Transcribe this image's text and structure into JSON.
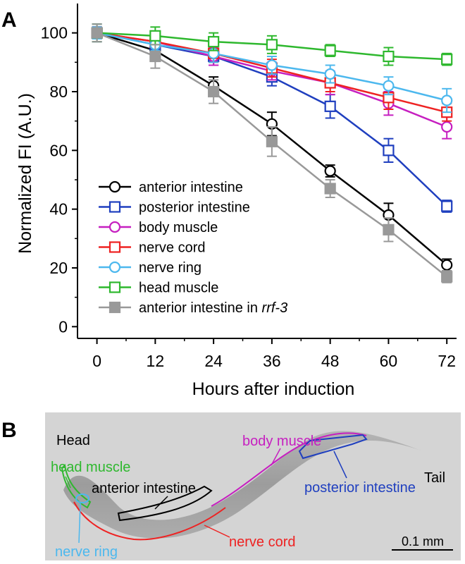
{
  "panel_a_label": "A",
  "panel_b_label": "B",
  "chart_data": {
    "type": "line",
    "xlabel": "Hours after induction",
    "ylabel": "Normalized FI (A.U.)",
    "x": [
      0,
      12,
      24,
      36,
      48,
      60,
      72
    ],
    "xticks": [
      "0",
      "12",
      "24",
      "36",
      "48",
      "60",
      "72"
    ],
    "yticks": [
      "0",
      "20",
      "40",
      "60",
      "80",
      "100"
    ],
    "xlim": [
      -4,
      74
    ],
    "ylim": [
      -4,
      110
    ],
    "grid": false,
    "legend_position": "lower-left",
    "series": [
      {
        "name": "anterior intestine",
        "color": "#000000",
        "marker": "open-circle",
        "values": [
          100,
          94,
          82,
          69,
          53,
          38,
          21
        ],
        "errors": [
          2,
          3,
          3,
          4,
          2,
          4,
          2
        ]
      },
      {
        "name": "posterior intestine",
        "color": "#1f3fbf",
        "marker": "open-square",
        "values": [
          100,
          96,
          92,
          85,
          75,
          60,
          41
        ],
        "errors": [
          3,
          3,
          3,
          3,
          4,
          4,
          2
        ]
      },
      {
        "name": "body muscle",
        "color": "#c61fc0",
        "marker": "open-circle",
        "values": [
          100,
          97,
          92,
          87,
          83,
          76,
          68
        ],
        "errors": [
          2,
          2,
          3,
          3,
          4,
          4,
          4
        ]
      },
      {
        "name": "nerve cord",
        "color": "#ee2222",
        "marker": "open-square",
        "values": [
          100,
          97,
          93,
          88,
          83,
          78,
          73
        ],
        "errors": [
          2,
          2,
          3,
          3,
          3,
          4,
          3
        ]
      },
      {
        "name": "nerve ring",
        "color": "#4cb8ee",
        "marker": "open-circle",
        "values": [
          100,
          96,
          93,
          89,
          86,
          82,
          77
        ],
        "errors": [
          2,
          2,
          3,
          3,
          3,
          3,
          4
        ]
      },
      {
        "name": "head muscle",
        "color": "#2eb82e",
        "marker": "open-square",
        "values": [
          100,
          99,
          97,
          96,
          94,
          92,
          91
        ],
        "errors": [
          3,
          3,
          3,
          3,
          2,
          3,
          2
        ]
      },
      {
        "name": "anterior intestine in ",
        "name_italic": "rrf-3",
        "color": "#999999",
        "marker": "filled-square",
        "values": [
          100,
          92,
          80,
          63,
          47,
          33,
          17
        ],
        "errors": [
          3,
          4,
          4,
          5,
          3,
          4,
          2
        ]
      }
    ]
  },
  "image_b": {
    "labels": {
      "head": "Head",
      "tail": "Tail",
      "head_muscle": "head muscle",
      "anterior_intestine": "anterior intestine",
      "body_muscle": "body muscle",
      "posterior_intestine": "posterior intestine",
      "nerve_ring": "nerve ring",
      "nerve_cord": "nerve cord"
    },
    "label_colors": {
      "head_muscle": "#2eb82e",
      "anterior_intestine": "#000000",
      "body_muscle": "#c61fc0",
      "posterior_intestine": "#1f3fbf",
      "nerve_ring": "#4cb8ee",
      "nerve_cord": "#ee2222"
    },
    "scale_bar_label": "0.1 mm"
  }
}
